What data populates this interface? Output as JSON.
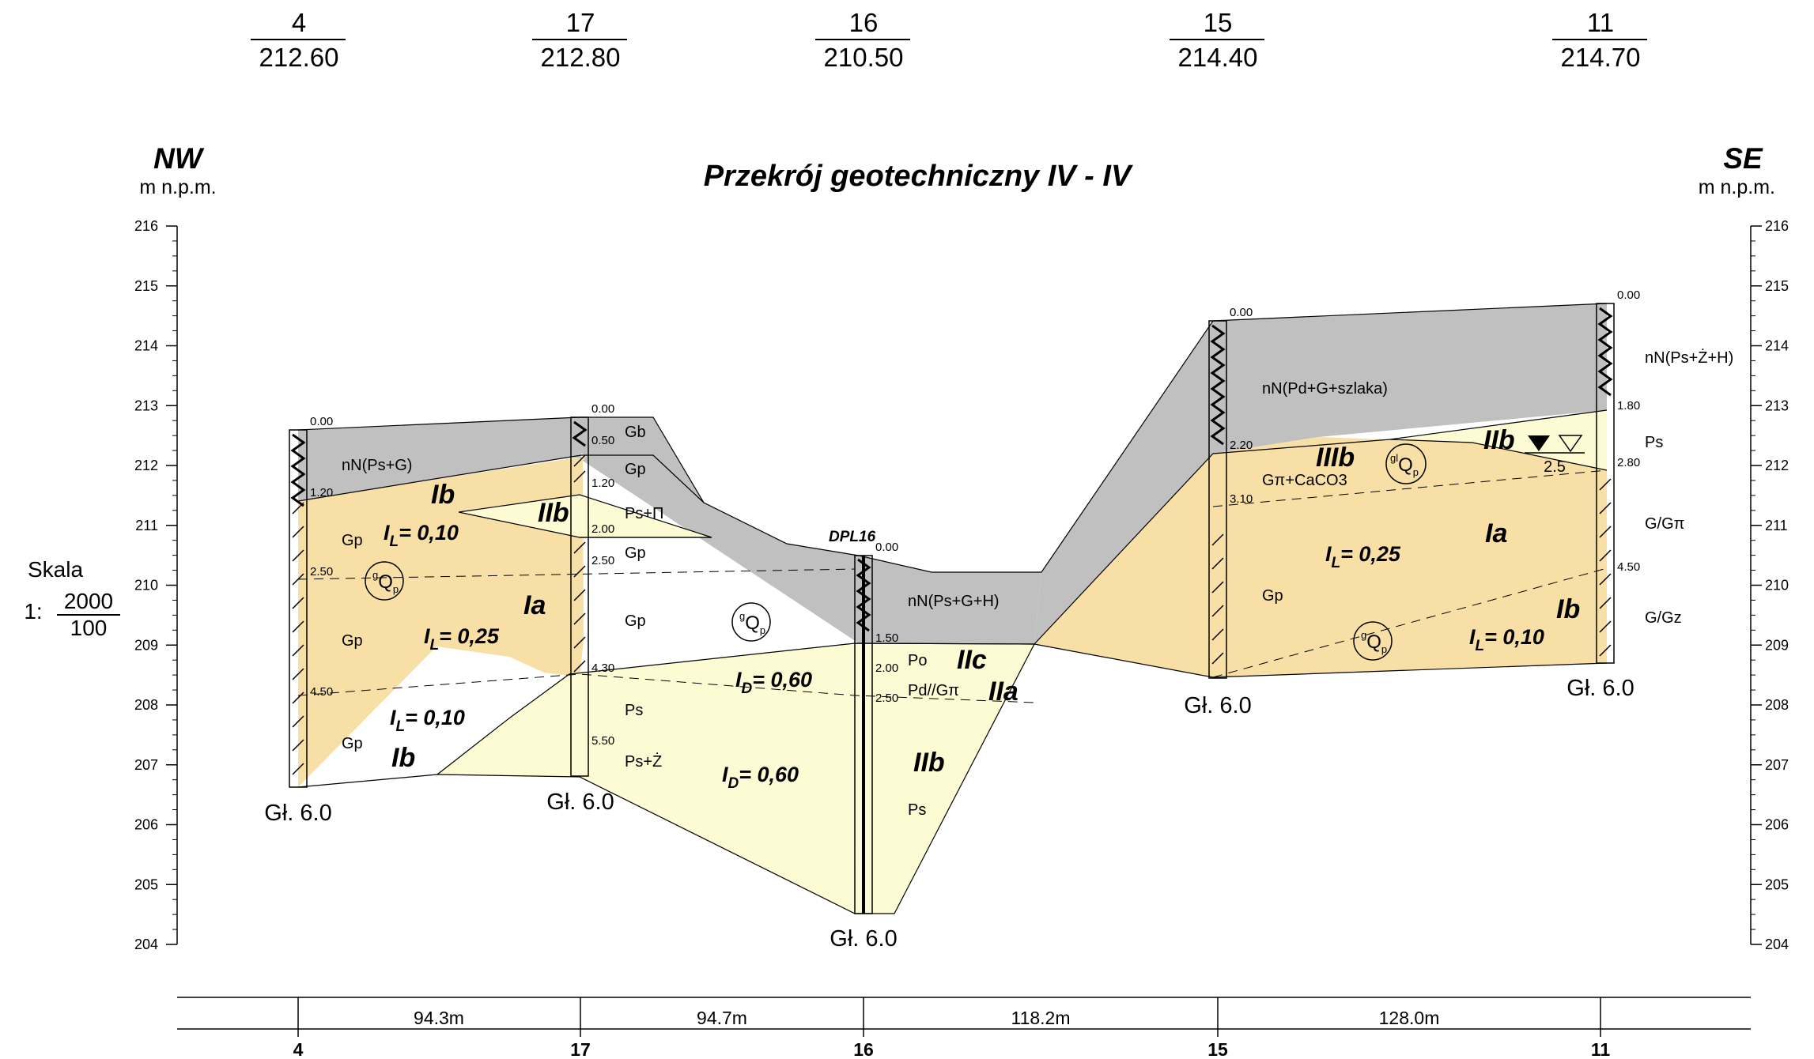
{
  "title": "Przekrój geotechniczny IV - IV",
  "left_side": {
    "direction": "NW",
    "unit": "m n.p.m."
  },
  "right_side": {
    "direction": "SE",
    "unit": "m n.p.m."
  },
  "scale": {
    "label": "Skala",
    "prefix": "1:",
    "numerator": "2000",
    "denominator": "100"
  },
  "elevation_axis": {
    "min": 204,
    "max": 216,
    "ticks": [
      "216",
      "215",
      "214",
      "213",
      "212",
      "211",
      "210",
      "209",
      "208",
      "207",
      "206",
      "205",
      "204"
    ]
  },
  "boreholes": [
    {
      "number": "4",
      "elevation": "212.60",
      "final_depth": "Gł. 6.0"
    },
    {
      "number": "17",
      "elevation": "212.80",
      "final_depth": "Gł. 6.0"
    },
    {
      "number": "16",
      "elevation": "210.50",
      "final_depth": "Gł. 6.0",
      "probe_label": "DPL16"
    },
    {
      "number": "15",
      "elevation": "214.40",
      "final_depth": "Gł. 6.0"
    },
    {
      "number": "11",
      "elevation": "214.70",
      "final_depth": "Gł. 6.0"
    }
  ],
  "distances": [
    "94.3m",
    "94.7m",
    "118.2m",
    "128.0m"
  ],
  "depth_marks": {
    "b4": [
      "0.00",
      "1.20",
      "2.50",
      "4.50"
    ],
    "b17": [
      "0.00",
      "0.50",
      "1.20",
      "2.00",
      "2.50",
      "4.30",
      "5.50"
    ],
    "b16": [
      "0.00",
      "1.50",
      "2.00",
      "2.50"
    ],
    "b15": [
      "0.00",
      "2.20",
      "3.10"
    ],
    "b11": [
      "0.00",
      "1.80",
      "2.80",
      "4.50"
    ]
  },
  "soil_labels": {
    "b4": [
      "nN(Ps+G)",
      "Gp",
      "Gp",
      "Gp"
    ],
    "b17": [
      "Gb",
      "Gp",
      "Ps+Π",
      "Gp",
      "Gp",
      "Ps",
      "Ps+Ż"
    ],
    "b16": [
      "nN(Ps+G+H)",
      "Po",
      "Pd//Gπ",
      "Ps"
    ],
    "b15": [
      "nN(Pd+G+szlaka)",
      "Gπ+CaCO3",
      "Gp"
    ],
    "b11": [
      "nN(Ps+Ż+H)",
      "Ps",
      "G/Gπ",
      "G/Gz"
    ]
  },
  "zones": [
    "Ib",
    "IIb",
    "Ia",
    "Ib",
    "IIc",
    "IIa",
    "IIb",
    "IIIb",
    "IIb",
    "Ia",
    "Ib"
  ],
  "indices": [
    "= 0,10",
    "= 0,25",
    "= 0,10",
    "= 0,60",
    "= 0,60",
    "= 0,25",
    "= 0,10"
  ],
  "index_symbols": {
    "IL_main": "I",
    "IL_sub": "L",
    "ID_main": "I",
    "ID_sub": "D"
  },
  "geology_symbol": {
    "main": "Q",
    "sub": "p",
    "sup_glacial": "g",
    "sup_glaciolacustrine": "gl"
  },
  "water_level": "2.5",
  "colors": {
    "fill": "#c0c0c0",
    "clay": "#f8dfa6",
    "sand": "#fdfbd4",
    "line": "#000000"
  }
}
